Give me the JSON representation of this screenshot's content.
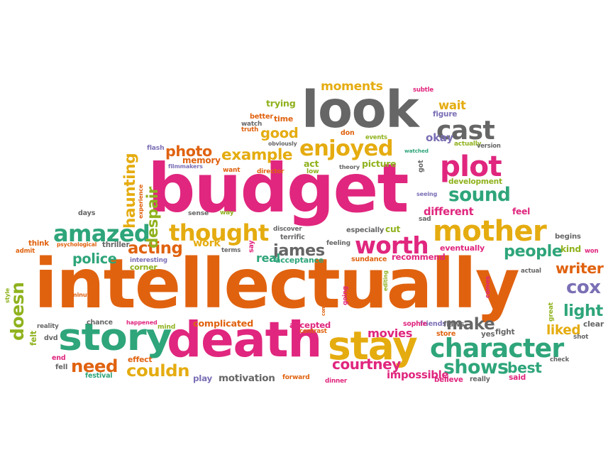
{
  "palette": {
    "orange": "#e0620f",
    "magenta": "#e0267e",
    "gray": "#666666",
    "yellow": "#e5ac10",
    "green": "#2ea57a",
    "olive": "#8fb21d",
    "purple": "#7b6fb5"
  },
  "words": [
    {
      "text": "intellectually",
      "color": "orange"
    },
    {
      "text": "budget",
      "color": "magenta"
    },
    {
      "text": "look",
      "color": "gray"
    },
    {
      "text": "death",
      "color": "magenta"
    },
    {
      "text": "stay",
      "color": "yellow"
    },
    {
      "text": "plot",
      "color": "magenta"
    },
    {
      "text": "mother",
      "color": "yellow"
    },
    {
      "text": "story",
      "color": "green"
    },
    {
      "text": "amazed",
      "color": "green"
    },
    {
      "text": "thought",
      "color": "yellow"
    },
    {
      "text": "character",
      "color": "green"
    },
    {
      "text": "worth",
      "color": "magenta"
    },
    {
      "text": "enjoyed",
      "color": "yellow"
    },
    {
      "text": "cast",
      "color": "gray"
    },
    {
      "text": "sound",
      "color": "green"
    },
    {
      "text": "james",
      "color": "gray"
    },
    {
      "text": "moments",
      "color": "yellow"
    },
    {
      "text": "cox",
      "color": "purple"
    },
    {
      "text": "courtney",
      "color": "magenta"
    },
    {
      "text": "people",
      "color": "green"
    },
    {
      "text": "shows",
      "color": "green"
    },
    {
      "text": "best",
      "color": "green"
    },
    {
      "text": "need",
      "color": "orange"
    },
    {
      "text": "couldn",
      "color": "yellow"
    },
    {
      "text": "haunting",
      "color": "yellow"
    },
    {
      "text": "doesn",
      "color": "olive"
    },
    {
      "text": "acting",
      "color": "orange"
    },
    {
      "text": "police",
      "color": "green"
    },
    {
      "text": "example",
      "color": "yellow"
    },
    {
      "text": "photo",
      "color": "orange"
    },
    {
      "text": "light",
      "color": "green"
    },
    {
      "text": "writer",
      "color": "orange"
    },
    {
      "text": "liked",
      "color": "yellow"
    },
    {
      "text": "make",
      "color": "gray"
    },
    {
      "text": "movies",
      "color": "magenta"
    },
    {
      "text": "despair",
      "color": "olive"
    },
    {
      "text": "good",
      "color": "yellow"
    },
    {
      "text": "real",
      "color": "green"
    },
    {
      "text": "different",
      "color": "magenta"
    },
    {
      "text": "motivation",
      "color": "gray"
    },
    {
      "text": "impossible",
      "color": "magenta"
    },
    {
      "text": "okay",
      "color": "purple"
    },
    {
      "text": "wait",
      "color": "yellow"
    },
    {
      "text": "trying",
      "color": "olive"
    },
    {
      "text": "time",
      "color": "orange"
    },
    {
      "text": "memory",
      "color": "orange"
    },
    {
      "text": "complicated",
      "color": "orange"
    },
    {
      "text": "recommend",
      "color": "magenta"
    },
    {
      "text": "acceptance",
      "color": "green"
    },
    {
      "text": "accepted",
      "color": "magenta"
    },
    {
      "text": "work",
      "color": "yellow"
    },
    {
      "text": "cut",
      "color": "olive"
    },
    {
      "text": "act",
      "color": "olive"
    },
    {
      "text": "picture",
      "color": "olive"
    },
    {
      "text": "development",
      "color": "olive"
    },
    {
      "text": "eventually",
      "color": "magenta"
    },
    {
      "text": "figure",
      "color": "purple"
    },
    {
      "text": "feel",
      "color": "magenta"
    },
    {
      "text": "sundance",
      "color": "orange"
    },
    {
      "text": "mind",
      "color": "olive"
    },
    {
      "text": "play",
      "color": "purple"
    },
    {
      "text": "felt",
      "color": "olive"
    },
    {
      "text": "kind",
      "color": "olive"
    },
    {
      "text": "begins",
      "color": "gray"
    },
    {
      "text": "happened",
      "color": "magenta"
    },
    {
      "text": "psychological",
      "color": "orange"
    },
    {
      "text": "thriller",
      "color": "gray"
    },
    {
      "text": "interesting",
      "color": "purple"
    },
    {
      "text": "corner",
      "color": "olive"
    },
    {
      "text": "discover",
      "color": "gray"
    },
    {
      "text": "terrific",
      "color": "gray"
    },
    {
      "text": "especially",
      "color": "gray"
    },
    {
      "text": "feeling",
      "color": "gray"
    },
    {
      "text": "think",
      "color": "orange"
    },
    {
      "text": "admit",
      "color": "orange"
    },
    {
      "text": "chance",
      "color": "gray"
    },
    {
      "text": "reality",
      "color": "gray"
    },
    {
      "text": "dvd",
      "color": "gray"
    },
    {
      "text": "end",
      "color": "magenta"
    },
    {
      "text": "fell",
      "color": "gray"
    },
    {
      "text": "effect",
      "color": "orange"
    },
    {
      "text": "festival",
      "color": "green"
    },
    {
      "text": "forward",
      "color": "orange"
    },
    {
      "text": "dinner",
      "color": "magenta"
    },
    {
      "text": "believe",
      "color": "magenta"
    },
    {
      "text": "really",
      "color": "gray"
    },
    {
      "text": "said",
      "color": "magenta"
    },
    {
      "text": "check",
      "color": "gray"
    },
    {
      "text": "shot",
      "color": "gray"
    },
    {
      "text": "clear",
      "color": "gray"
    },
    {
      "text": "great",
      "color": "olive"
    },
    {
      "text": "fight",
      "color": "gray"
    },
    {
      "text": "store",
      "color": "orange"
    },
    {
      "text": "yes",
      "color": "gray"
    },
    {
      "text": "friends",
      "color": "purple"
    },
    {
      "text": "flaws",
      "color": "gray"
    },
    {
      "text": "sophie",
      "color": "magenta"
    },
    {
      "text": "contrast",
      "color": "orange"
    },
    {
      "text": "common",
      "color": "orange"
    },
    {
      "text": "going",
      "color": "magenta"
    },
    {
      "text": "editing",
      "color": "olive"
    },
    {
      "text": "comes",
      "color": "magenta"
    },
    {
      "text": "actual",
      "color": "gray"
    },
    {
      "text": "won",
      "color": "magenta"
    },
    {
      "text": "sad",
      "color": "gray"
    },
    {
      "text": "seeing",
      "color": "purple"
    },
    {
      "text": "got",
      "color": "gray"
    },
    {
      "text": "theory",
      "color": "gray"
    },
    {
      "text": "low",
      "color": "olive"
    },
    {
      "text": "director",
      "color": "orange"
    },
    {
      "text": "want",
      "color": "orange"
    },
    {
      "text": "filmmakers",
      "color": "purple"
    },
    {
      "text": "flash",
      "color": "purple"
    },
    {
      "text": "better",
      "color": "orange"
    },
    {
      "text": "watch",
      "color": "gray"
    },
    {
      "text": "truth",
      "color": "orange"
    },
    {
      "text": "obviously",
      "color": "gray"
    },
    {
      "text": "events",
      "color": "olive"
    },
    {
      "text": "don",
      "color": "orange"
    },
    {
      "text": "watched",
      "color": "green"
    },
    {
      "text": "actually",
      "color": "olive"
    },
    {
      "text": "version",
      "color": "gray"
    },
    {
      "text": "subtle",
      "color": "magenta"
    },
    {
      "text": "experience",
      "color": "orange"
    },
    {
      "text": "days",
      "color": "gray"
    },
    {
      "text": "sense",
      "color": "gray"
    },
    {
      "text": "way",
      "color": "olive"
    },
    {
      "text": "terms",
      "color": "gray"
    },
    {
      "text": "say",
      "color": "magenta"
    },
    {
      "text": "style",
      "color": "olive"
    },
    {
      "text": "minutes",
      "color": "orange"
    }
  ]
}
